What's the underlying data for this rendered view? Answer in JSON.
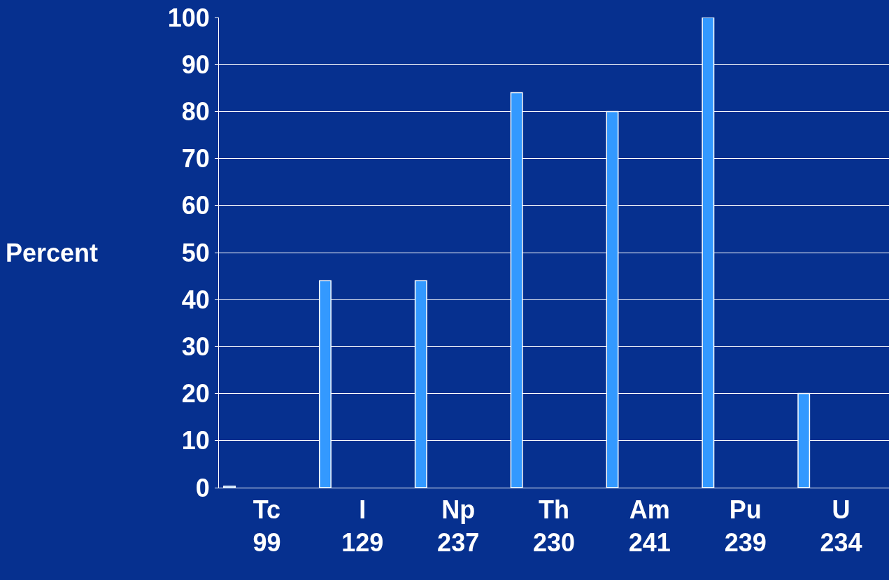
{
  "chart_data": {
    "type": "bar",
    "ylabel": "Percent",
    "categories": [
      "Tc\n99",
      "I\n129",
      "Np\n237",
      "Th\n230",
      "Am\n241",
      "Pu\n239",
      "U\n234"
    ],
    "values": [
      0.3,
      44,
      44,
      84,
      80,
      100,
      20
    ],
    "color": "#3399ff",
    "ylim": [
      0,
      100
    ],
    "yticks": [
      0,
      10,
      20,
      30,
      40,
      50,
      60,
      70,
      80,
      90,
      100
    ],
    "grid": "y"
  }
}
